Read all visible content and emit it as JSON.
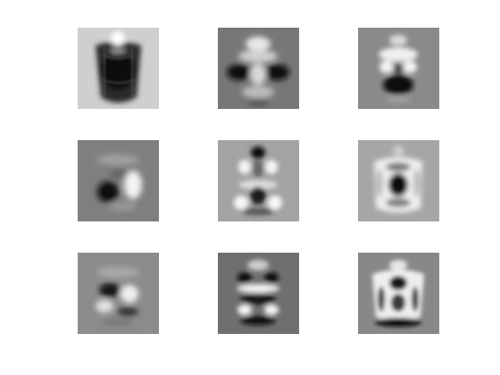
{
  "figure": {
    "background": "#ffffff",
    "panels": [
      {
        "name": "basis-image-1",
        "bg": "#cfcfcf"
      },
      {
        "name": "basis-image-2",
        "bg": "#777777"
      },
      {
        "name": "basis-image-3",
        "bg": "#8a8a8a"
      },
      {
        "name": "basis-image-4",
        "bg": "#7f7f7f"
      },
      {
        "name": "basis-image-5",
        "bg": "#a3a3a3"
      },
      {
        "name": "basis-image-6",
        "bg": "#a6a6a6"
      },
      {
        "name": "basis-image-7",
        "bg": "#8c8c8c"
      },
      {
        "name": "basis-image-8",
        "bg": "#6f6f6f"
      },
      {
        "name": "basis-image-9",
        "bg": "#888888"
      }
    ]
  }
}
